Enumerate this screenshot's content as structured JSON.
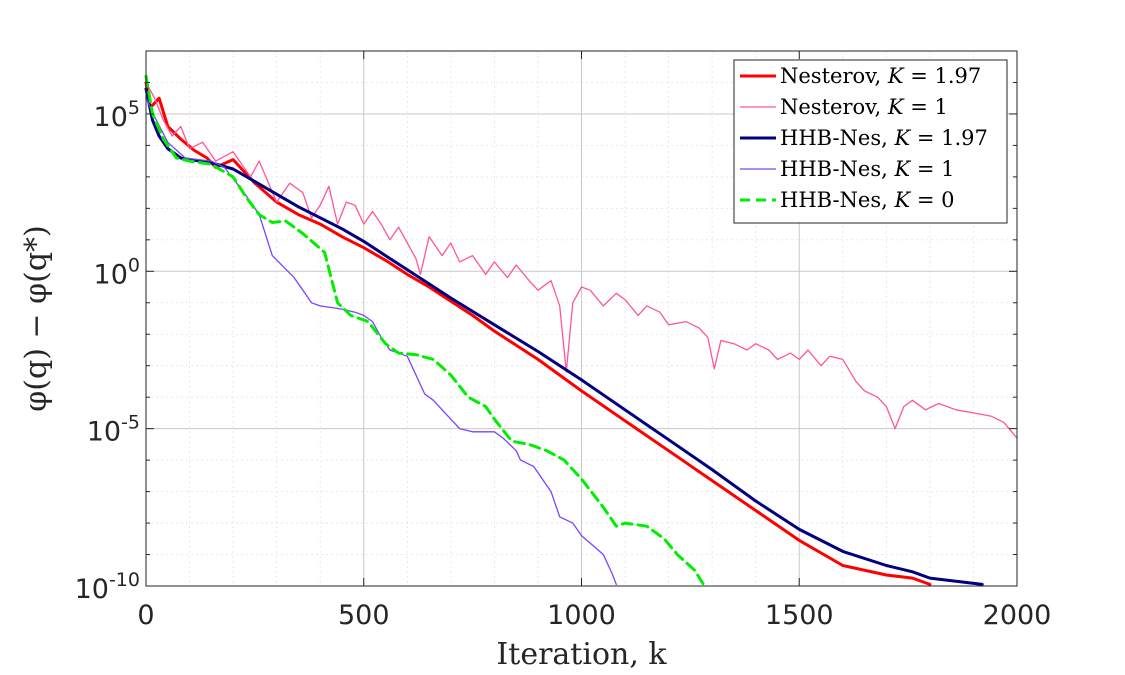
{
  "chart_data": {
    "type": "line",
    "title": "",
    "xlabel": "Iteration, k",
    "ylabel": "φ(q) − φ(q*)",
    "xlim": [
      0,
      2000
    ],
    "ylim_log10": [
      -10,
      7
    ],
    "yscale": "log",
    "grid": true,
    "minor_grid": true,
    "legend_position": "top-right",
    "x_ticks": [
      "0",
      "500",
      "1000",
      "1500",
      "2000"
    ],
    "x_tick_values": [
      0,
      500,
      1000,
      1500,
      2000
    ],
    "y_ticks": [
      {
        "base": "10",
        "exp": "-10",
        "log10": -10
      },
      {
        "base": "10",
        "exp": "-5",
        "log10": -5
      },
      {
        "base": "10",
        "exp": "0",
        "log10": 0
      },
      {
        "base": "10",
        "exp": "5",
        "log10": 5
      }
    ],
    "series": [
      {
        "name": "Nesterov, K = 1.97",
        "legend": {
          "prefix": "Nesterov, ",
          "var": "K",
          "value": " = 1.97"
        },
        "color": "#ff0000",
        "dash": "solid",
        "weight": "thick",
        "points_log10": [
          [
            0,
            6
          ],
          [
            10,
            5.2
          ],
          [
            30,
            5.5
          ],
          [
            50,
            4.6
          ],
          [
            80,
            4.2
          ],
          [
            110,
            3.85
          ],
          [
            140,
            3.6
          ],
          [
            160,
            3.3
          ],
          [
            200,
            3.55
          ],
          [
            250,
            2.8
          ],
          [
            300,
            2.2
          ],
          [
            350,
            1.8
          ],
          [
            400,
            1.5
          ],
          [
            450,
            1.1
          ],
          [
            500,
            0.75
          ],
          [
            550,
            0.35
          ],
          [
            600,
            -0.1
          ],
          [
            650,
            -0.5
          ],
          [
            700,
            -0.95
          ],
          [
            750,
            -1.4
          ],
          [
            800,
            -1.9
          ],
          [
            850,
            -2.35
          ],
          [
            900,
            -2.8
          ],
          [
            950,
            -3.3
          ],
          [
            1000,
            -3.8
          ],
          [
            1100,
            -4.75
          ],
          [
            1200,
            -5.7
          ],
          [
            1300,
            -6.65
          ],
          [
            1400,
            -7.6
          ],
          [
            1500,
            -8.55
          ],
          [
            1600,
            -9.35
          ],
          [
            1700,
            -9.65
          ],
          [
            1760,
            -9.75
          ],
          [
            1800,
            -9.95
          ]
        ]
      },
      {
        "name": "Nesterov, K = 1",
        "legend": {
          "prefix": "Nesterov, ",
          "var": "K",
          "value": " = 1"
        },
        "color": "#ff5599",
        "dash": "solid",
        "weight": "thin",
        "points_log10": [
          [
            0,
            6
          ],
          [
            20,
            5.5
          ],
          [
            40,
            4.8
          ],
          [
            60,
            4.3
          ],
          [
            80,
            4.6
          ],
          [
            100,
            3.9
          ],
          [
            130,
            4.1
          ],
          [
            160,
            3.5
          ],
          [
            200,
            3.8
          ],
          [
            240,
            3.0
          ],
          [
            260,
            3.5
          ],
          [
            300,
            2.2
          ],
          [
            330,
            2.8
          ],
          [
            360,
            2.5
          ],
          [
            380,
            1.7
          ],
          [
            400,
            2.1
          ],
          [
            420,
            2.7
          ],
          [
            440,
            1.5
          ],
          [
            460,
            2.2
          ],
          [
            480,
            2.1
          ],
          [
            500,
            1.5
          ],
          [
            520,
            1.9
          ],
          [
            540,
            1.5
          ],
          [
            560,
            1.0
          ],
          [
            580,
            1.4
          ],
          [
            600,
            0.9
          ],
          [
            620,
            0.4
          ],
          [
            630,
            -0.1
          ],
          [
            650,
            1.1
          ],
          [
            680,
            0.5
          ],
          [
            700,
            0.9
          ],
          [
            720,
            0.3
          ],
          [
            750,
            0.5
          ],
          [
            780,
            -0.1
          ],
          [
            800,
            0.3
          ],
          [
            830,
            -0.2
          ],
          [
            850,
            0.2
          ],
          [
            880,
            -0.3
          ],
          [
            900,
            -0.6
          ],
          [
            930,
            -0.3
          ],
          [
            950,
            -1.1
          ],
          [
            965,
            -3.2
          ],
          [
            980,
            -1.0
          ],
          [
            1000,
            -0.5
          ],
          [
            1020,
            -0.6
          ],
          [
            1050,
            -1.1
          ],
          [
            1080,
            -0.7
          ],
          [
            1100,
            -0.9
          ],
          [
            1130,
            -1.4
          ],
          [
            1150,
            -1.1
          ],
          [
            1180,
            -1.3
          ],
          [
            1200,
            -1.7
          ],
          [
            1240,
            -1.6
          ],
          [
            1270,
            -1.8
          ],
          [
            1290,
            -2.1
          ],
          [
            1305,
            -3.1
          ],
          [
            1320,
            -2.2
          ],
          [
            1350,
            -2.3
          ],
          [
            1380,
            -2.5
          ],
          [
            1400,
            -2.3
          ],
          [
            1430,
            -2.5
          ],
          [
            1450,
            -2.8
          ],
          [
            1480,
            -2.6
          ],
          [
            1500,
            -2.8
          ],
          [
            1520,
            -2.5
          ],
          [
            1550,
            -3.0
          ],
          [
            1570,
            -2.7
          ],
          [
            1600,
            -2.8
          ],
          [
            1630,
            -3.5
          ],
          [
            1650,
            -3.8
          ],
          [
            1680,
            -4.0
          ],
          [
            1700,
            -4.3
          ],
          [
            1720,
            -5.0
          ],
          [
            1740,
            -4.3
          ],
          [
            1760,
            -4.1
          ],
          [
            1790,
            -4.4
          ],
          [
            1820,
            -4.2
          ],
          [
            1860,
            -4.4
          ],
          [
            1900,
            -4.5
          ],
          [
            1940,
            -4.6
          ],
          [
            1970,
            -4.8
          ],
          [
            2000,
            -5.3
          ]
        ]
      },
      {
        "name": "HHB-Nes, K = 1.97",
        "legend": {
          "prefix": "HHB-Nes, ",
          "var": "K",
          "value": " = 1.97"
        },
        "color": "#000080",
        "dash": "solid",
        "weight": "thick",
        "points_log10": [
          [
            0,
            5.8
          ],
          [
            15,
            4.8
          ],
          [
            30,
            4.3
          ],
          [
            50,
            3.9
          ],
          [
            80,
            3.6
          ],
          [
            100,
            3.55
          ],
          [
            150,
            3.45
          ],
          [
            200,
            3.25
          ],
          [
            250,
            2.85
          ],
          [
            300,
            2.45
          ],
          [
            350,
            2.05
          ],
          [
            400,
            1.7
          ],
          [
            450,
            1.35
          ],
          [
            500,
            0.95
          ],
          [
            550,
            0.5
          ],
          [
            600,
            0.05
          ],
          [
            650,
            -0.4
          ],
          [
            700,
            -0.85
          ],
          [
            800,
            -1.7
          ],
          [
            900,
            -2.55
          ],
          [
            1000,
            -3.45
          ],
          [
            1100,
            -4.4
          ],
          [
            1200,
            -5.35
          ],
          [
            1300,
            -6.3
          ],
          [
            1400,
            -7.3
          ],
          [
            1500,
            -8.2
          ],
          [
            1600,
            -8.9
          ],
          [
            1700,
            -9.35
          ],
          [
            1760,
            -9.55
          ],
          [
            1800,
            -9.75
          ],
          [
            1860,
            -9.85
          ],
          [
            1920,
            -9.95
          ]
        ]
      },
      {
        "name": "HHB-Nes, K = 1",
        "legend": {
          "prefix": "HHB-Nes, ",
          "var": "K",
          "value": " = 1"
        },
        "color": "#7744ff",
        "dash": "solid",
        "weight": "thin",
        "points_log10": [
          [
            0,
            5.5
          ],
          [
            20,
            4.9
          ],
          [
            50,
            4.1
          ],
          [
            90,
            3.6
          ],
          [
            150,
            3.5
          ],
          [
            180,
            3.3
          ],
          [
            200,
            2.95
          ],
          [
            230,
            2.4
          ],
          [
            260,
            1.8
          ],
          [
            290,
            0.5
          ],
          [
            340,
            -0.2
          ],
          [
            365,
            -0.7
          ],
          [
            380,
            -1.0
          ],
          [
            400,
            -1.1
          ],
          [
            450,
            -1.2
          ],
          [
            480,
            -1.3
          ],
          [
            500,
            -1.4
          ],
          [
            520,
            -1.6
          ],
          [
            540,
            -2.1
          ],
          [
            560,
            -2.5
          ],
          [
            600,
            -2.7
          ],
          [
            620,
            -3.3
          ],
          [
            640,
            -3.9
          ],
          [
            660,
            -4.1
          ],
          [
            700,
            -4.7
          ],
          [
            720,
            -5.0
          ],
          [
            750,
            -5.1
          ],
          [
            800,
            -5.1
          ],
          [
            820,
            -5.3
          ],
          [
            850,
            -5.7
          ],
          [
            860,
            -6.0
          ],
          [
            890,
            -6.2
          ],
          [
            930,
            -7.0
          ],
          [
            950,
            -7.8
          ],
          [
            980,
            -8.0
          ],
          [
            1000,
            -8.4
          ],
          [
            1050,
            -9.0
          ],
          [
            1070,
            -9.6
          ],
          [
            1080,
            -9.95
          ]
        ]
      },
      {
        "name": "HHB-Nes, K = 0",
        "legend": {
          "prefix": "HHB-Nes, ",
          "var": "K",
          "value": " = 0"
        },
        "color": "#00ee00",
        "dash": "dashed",
        "weight": "thick",
        "points_log10": [
          [
            0,
            6.2
          ],
          [
            15,
            5.0
          ],
          [
            40,
            4.2
          ],
          [
            70,
            3.6
          ],
          [
            100,
            3.5
          ],
          [
            150,
            3.4
          ],
          [
            200,
            3.0
          ],
          [
            230,
            2.35
          ],
          [
            260,
            1.8
          ],
          [
            290,
            1.55
          ],
          [
            320,
            1.6
          ],
          [
            360,
            1.2
          ],
          [
            410,
            0.6
          ],
          [
            440,
            -1.0
          ],
          [
            470,
            -1.4
          ],
          [
            510,
            -1.6
          ],
          [
            550,
            -2.3
          ],
          [
            580,
            -2.6
          ],
          [
            620,
            -2.65
          ],
          [
            660,
            -2.8
          ],
          [
            700,
            -3.3
          ],
          [
            740,
            -4.0
          ],
          [
            780,
            -4.3
          ],
          [
            800,
            -4.7
          ],
          [
            840,
            -5.4
          ],
          [
            880,
            -5.5
          ],
          [
            920,
            -5.7
          ],
          [
            960,
            -6.0
          ],
          [
            1000,
            -6.6
          ],
          [
            1050,
            -7.5
          ],
          [
            1080,
            -8.1
          ],
          [
            1100,
            -8.0
          ],
          [
            1150,
            -8.1
          ],
          [
            1190,
            -8.5
          ],
          [
            1220,
            -9.0
          ],
          [
            1260,
            -9.5
          ],
          [
            1280,
            -9.95
          ]
        ]
      }
    ]
  }
}
